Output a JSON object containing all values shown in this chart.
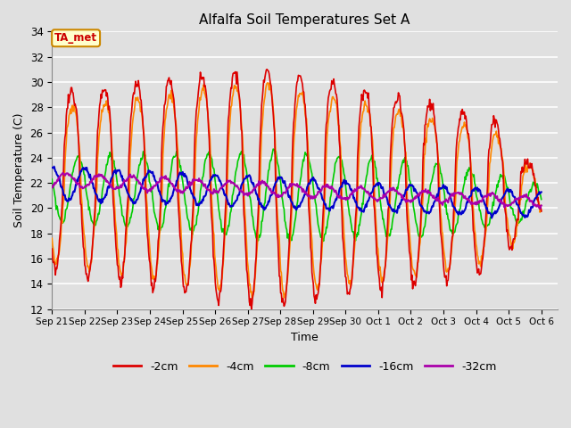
{
  "title": "Alfalfa Soil Temperatures Set A",
  "xlabel": "Time",
  "ylabel": "Soil Temperature (C)",
  "ylim": [
    12,
    34
  ],
  "background_color": "#e0e0e0",
  "grid_color": "white",
  "annotation_text": "TA_met",
  "annotation_color": "#cc0000",
  "annotation_bg": "#ffffcc",
  "annotation_border": "#cc8800",
  "x_tick_labels": [
    "Sep 21",
    "Sep 22",
    "Sep 23",
    "Sep 24",
    "Sep 25",
    "Sep 26",
    "Sep 27",
    "Sep 28",
    "Sep 29",
    "Sep 30",
    "Oct 1",
    "Oct 2",
    "Oct 3",
    "Oct 4",
    "Oct 5",
    "Oct 6"
  ],
  "legend_labels": [
    "-2cm",
    "-4cm",
    "-8cm",
    "-16cm",
    "-32cm"
  ],
  "line_colors": [
    "#dd0000",
    "#ff8800",
    "#00cc00",
    "#0000cc",
    "#aa00aa"
  ],
  "line_widths": [
    1.2,
    1.2,
    1.2,
    1.5,
    1.5
  ],
  "n_days": 15,
  "pts_per_day": 48
}
